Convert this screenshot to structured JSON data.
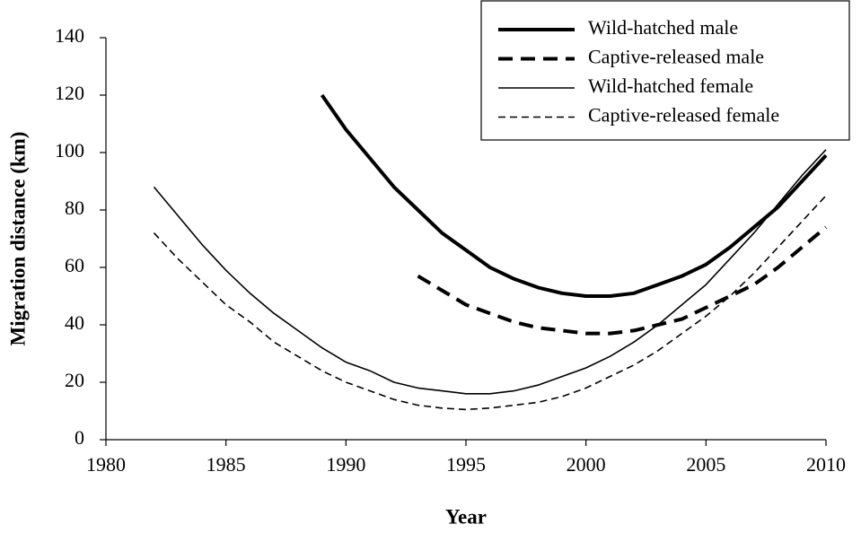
{
  "chart_data": {
    "type": "line",
    "x_label": "Year",
    "y_label": "Migration distance (km)",
    "xlim": [
      1980,
      2010
    ],
    "xticks": [
      1980,
      1985,
      1990,
      1995,
      2000,
      2005,
      2010
    ],
    "ylim": [
      0,
      140
    ],
    "yticks": [
      0,
      20,
      40,
      60,
      80,
      100,
      120,
      140
    ],
    "legend": "top-right",
    "series": [
      {
        "name": "Wild-hatched male",
        "color": "#000000",
        "linewidth": 4,
        "linestyle": "solid",
        "x": [
          1989,
          1990,
          1991,
          1992,
          1993,
          1994,
          1995,
          1996,
          1997,
          1998,
          1999,
          2000,
          2001,
          2002,
          2003,
          2004,
          2005,
          2006,
          2007,
          2008,
          2009,
          2010
        ],
        "values": [
          120,
          108,
          98,
          88,
          80,
          72,
          66,
          60,
          56,
          53,
          51,
          50,
          50,
          51,
          54,
          57,
          61,
          67,
          74,
          81,
          90,
          99
        ]
      },
      {
        "name": "Captive-released male",
        "color": "#000000",
        "linewidth": 4,
        "linestyle": "dashed",
        "x": [
          1993,
          1994,
          1995,
          1996,
          1997,
          1998,
          1999,
          2000,
          2001,
          2002,
          2003,
          2004,
          2005,
          2006,
          2007,
          2008,
          2009,
          2010
        ],
        "values": [
          57,
          52,
          47,
          44,
          41,
          39,
          38,
          37,
          37,
          38,
          40,
          42,
          46,
          50,
          54,
          60,
          67,
          74
        ]
      },
      {
        "name": "Wild-hatched female",
        "color": "#000000",
        "linewidth": 1.6,
        "linestyle": "solid",
        "x": [
          1982,
          1983,
          1984,
          1985,
          1986,
          1987,
          1988,
          1989,
          1990,
          1991,
          1992,
          1993,
          1994,
          1995,
          1996,
          1997,
          1998,
          1999,
          2000,
          2001,
          2002,
          2003,
          2004,
          2005,
          2006,
          2007,
          2008,
          2009,
          2010
        ],
        "values": [
          88,
          78,
          68,
          59,
          51,
          44,
          38,
          32,
          27,
          24,
          20,
          18,
          17,
          16,
          16,
          17,
          19,
          22,
          25,
          29,
          34,
          40,
          47,
          54,
          63,
          72,
          82,
          92,
          101
        ]
      },
      {
        "name": "Captive-released female",
        "color": "#000000",
        "linewidth": 1.6,
        "linestyle": "dashed",
        "x": [
          1982,
          1983,
          1984,
          1985,
          1986,
          1987,
          1988,
          1989,
          1990,
          1991,
          1992,
          1993,
          1994,
          1995,
          1996,
          1997,
          1998,
          1999,
          2000,
          2001,
          2002,
          2003,
          2004,
          2005,
          2006,
          2007,
          2008,
          2009,
          2010
        ],
        "values": [
          72,
          63,
          55,
          47,
          41,
          34,
          29,
          24,
          20,
          17,
          14,
          12,
          11,
          10.5,
          11,
          12,
          13,
          15,
          18,
          22,
          26,
          31,
          37,
          43,
          50,
          58,
          67,
          76,
          85
        ]
      }
    ]
  }
}
